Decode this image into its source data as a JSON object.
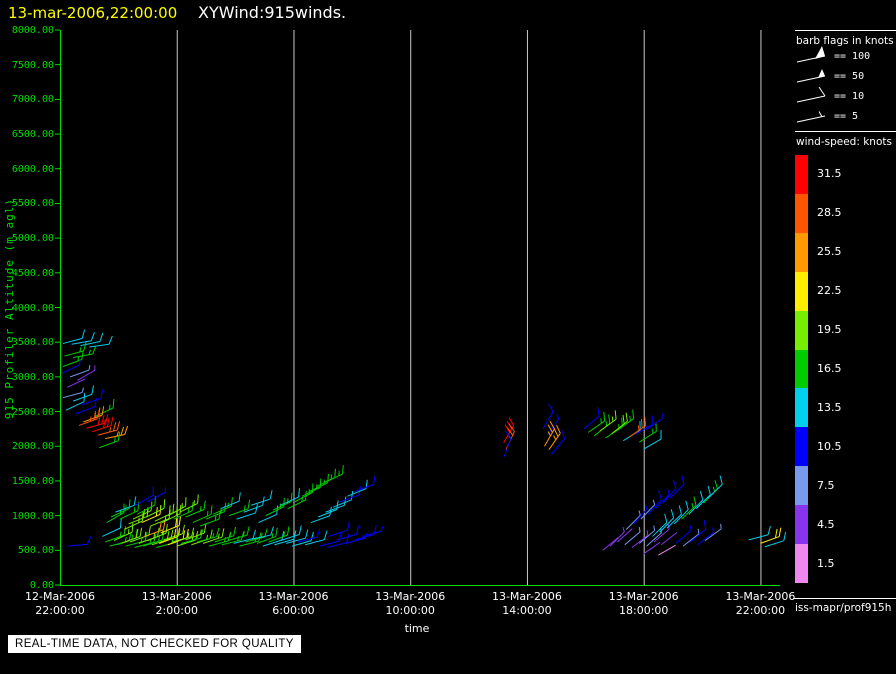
{
  "header": {
    "timestamp": "13-mar-2006,22:00:00",
    "title": "XYWind:915winds."
  },
  "colors": {
    "axis": "#00dd00",
    "timestamp": "#ffff00",
    "grid": "#c8c8c8",
    "background": "#000000"
  },
  "axes": {
    "y_title": "915 Profiler Altitude (m agl)",
    "x_title": "time",
    "y_ticks": [
      "8000.00",
      "7500.00",
      "7000.00",
      "6500.00",
      "6000.00",
      "5500.00",
      "5000.00",
      "4500.00",
      "4000.00",
      "3500.00",
      "3000.00",
      "2500.00",
      "2000.00",
      "1500.00",
      "1000.00",
      "500.00",
      "0.00"
    ],
    "x_ticks": [
      {
        "t": 0,
        "date": "12-Mar-2006",
        "time": "22:00:00"
      },
      {
        "t": 4,
        "date": "13-Mar-2006",
        "time": "2:00:00"
      },
      {
        "t": 8,
        "date": "13-Mar-2006",
        "time": "6:00:00"
      },
      {
        "t": 12,
        "date": "13-Mar-2006",
        "time": "10:00:00"
      },
      {
        "t": 16,
        "date": "13-Mar-2006",
        "time": "14:00:00"
      },
      {
        "t": 20,
        "date": "13-Mar-2006",
        "time": "18:00:00"
      },
      {
        "t": 24,
        "date": "13-Mar-2006",
        "time": "22:00:00"
      }
    ]
  },
  "legend": {
    "barb_title": "barb flags in knots",
    "items": [
      {
        "label": "== 100",
        "flag": "pennant-100"
      },
      {
        "label": "== 50",
        "flag": "pennant-50"
      },
      {
        "label": "== 10",
        "flag": "barb-10"
      },
      {
        "label": "== 5",
        "flag": "barb-5"
      }
    ],
    "speed_title": "wind-speed: knots"
  },
  "colorbar": {
    "labels": [
      "31.5",
      "28.5",
      "25.5",
      "22.5",
      "19.5",
      "16.5",
      "13.5",
      "10.5",
      "7.5",
      "4.5",
      "1.5"
    ],
    "colors": [
      "#ff0000",
      "#ff5500",
      "#ff9900",
      "#ffee00",
      "#77ee00",
      "#00cc00",
      "#00cfee",
      "#0000ff",
      "#7799ee",
      "#8833ee",
      "#ee88ee"
    ]
  },
  "footer": {
    "source": "iss-mapr/prof915h",
    "status": "REAL-TIME DATA, NOT CHECKED FOR QUALITY"
  },
  "chart_data": {
    "type": "scatter",
    "subtype": "wind-barb-time-height",
    "title": "XYWind:915winds.",
    "xlabel": "time",
    "ylabel": "915 Profiler Altitude (m agl)",
    "x_axis": {
      "start": "12-Mar-2006 22:00:00",
      "end": "13-Mar-2006 22:40:00",
      "tick_interval_hours": 4,
      "range_hours": [
        0,
        24.67
      ]
    },
    "y_axis": {
      "min": 0,
      "max": 8000,
      "tick_step": 500,
      "units": "m agl"
    },
    "grid": "vertical-only",
    "legend_position": "right",
    "barb_fields": [
      "t_hours_since_start",
      "altitude_m",
      "speed_knots",
      "screen_angle_deg"
    ],
    "barbs": [
      [
        0.1,
        3480,
        13,
        15
      ],
      [
        0.4,
        3470,
        13,
        10
      ],
      [
        0.7,
        3450,
        14,
        12
      ],
      [
        1.0,
        3430,
        13,
        8
      ],
      [
        0.15,
        3300,
        17,
        15
      ],
      [
        0.45,
        3280,
        16,
        10
      ],
      [
        0.1,
        3150,
        16,
        20
      ],
      [
        0.05,
        3050,
        9,
        25
      ],
      [
        0.35,
        3000,
        8,
        20
      ],
      [
        0.6,
        2950,
        5,
        30
      ],
      [
        0.25,
        2850,
        4,
        25
      ],
      [
        0.1,
        2700,
        8,
        15
      ],
      [
        0.45,
        2650,
        14,
        20
      ],
      [
        0.75,
        2600,
        10,
        18
      ],
      [
        0.2,
        2520,
        13,
        25
      ],
      [
        0.55,
        2470,
        11,
        20
      ],
      [
        1.2,
        2430,
        17,
        25
      ],
      [
        0.8,
        2350,
        25,
        20
      ],
      [
        0.65,
        2300,
        28,
        20
      ],
      [
        0.9,
        2260,
        30,
        15
      ],
      [
        1.1,
        2210,
        31,
        18
      ],
      [
        1.3,
        2160,
        29,
        15
      ],
      [
        1.55,
        2110,
        26,
        12
      ],
      [
        1.35,
        1980,
        17,
        20
      ],
      [
        0.25,
        560,
        10,
        5
      ],
      [
        1.45,
        700,
        14,
        25
      ],
      [
        1.55,
        620,
        16,
        20
      ],
      [
        1.7,
        560,
        17,
        15
      ],
      [
        1.85,
        640,
        19,
        25
      ],
      [
        1.95,
        580,
        16,
        20
      ],
      [
        1.6,
        900,
        17,
        30
      ],
      [
        1.75,
        980,
        16,
        25
      ],
      [
        1.9,
        1050,
        14,
        20
      ],
      [
        2.05,
        950,
        17,
        25
      ],
      [
        2.1,
        600,
        20,
        20
      ],
      [
        2.25,
        560,
        17,
        15
      ],
      [
        2.4,
        620,
        18,
        20
      ],
      [
        2.55,
        540,
        16,
        15
      ],
      [
        2.7,
        600,
        19,
        20
      ],
      [
        2.85,
        560,
        17,
        18
      ],
      [
        3.0,
        640,
        18,
        22
      ],
      [
        3.15,
        580,
        20,
        18
      ],
      [
        3.3,
        540,
        17,
        15
      ],
      [
        2.2,
        800,
        19,
        25
      ],
      [
        2.35,
        880,
        20,
        22
      ],
      [
        2.5,
        950,
        18,
        25
      ],
      [
        2.65,
        1020,
        17,
        28
      ],
      [
        2.8,
        900,
        21,
        24
      ],
      [
        2.9,
        700,
        24,
        20
      ],
      [
        2.95,
        980,
        19,
        26
      ],
      [
        3.1,
        850,
        18,
        22
      ],
      [
        3.25,
        920,
        20,
        25
      ],
      [
        3.45,
        750,
        23,
        22
      ],
      [
        3.4,
        600,
        22,
        20
      ],
      [
        3.55,
        650,
        19,
        18
      ],
      [
        3.7,
        580,
        21,
        20
      ],
      [
        3.85,
        620,
        18,
        16
      ],
      [
        4.0,
        560,
        20,
        18
      ],
      [
        4.15,
        600,
        17,
        15
      ],
      [
        4.3,
        650,
        19,
        20
      ],
      [
        4.5,
        580,
        18,
        18
      ],
      [
        4.7,
        620,
        16,
        15
      ],
      [
        3.5,
        900,
        20,
        26
      ],
      [
        3.7,
        1000,
        19,
        28
      ],
      [
        3.9,
        950,
        17,
        24
      ],
      [
        4.1,
        1050,
        18,
        26
      ],
      [
        4.3,
        980,
        16,
        22
      ],
      [
        4.55,
        900,
        17,
        24
      ],
      [
        4.8,
        850,
        15,
        20
      ],
      [
        4.9,
        600,
        18,
        18
      ],
      [
        5.1,
        560,
        16,
        15
      ],
      [
        5.3,
        620,
        17,
        18
      ],
      [
        5.55,
        580,
        15,
        14
      ],
      [
        5.75,
        640,
        16,
        16
      ],
      [
        5.95,
        600,
        14,
        14
      ],
      [
        6.15,
        560,
        16,
        15
      ],
      [
        6.35,
        620,
        15,
        14
      ],
      [
        6.55,
        660,
        13,
        12
      ],
      [
        5.0,
        950,
        16,
        22
      ],
      [
        5.25,
        1020,
        15,
        24
      ],
      [
        5.5,
        1100,
        14,
        22
      ],
      [
        5.8,
        1000,
        15,
        20
      ],
      [
        6.05,
        950,
        13,
        18
      ],
      [
        6.3,
        1050,
        14,
        20
      ],
      [
        6.55,
        1150,
        13,
        18
      ],
      [
        2.6,
        1150,
        10,
        30
      ],
      [
        3.0,
        1200,
        9,
        28
      ],
      [
        6.75,
        600,
        16,
        20
      ],
      [
        6.95,
        560,
        14,
        18
      ],
      [
        7.15,
        620,
        15,
        20
      ],
      [
        7.35,
        580,
        13,
        16
      ],
      [
        7.55,
        640,
        14,
        18
      ],
      [
        7.75,
        600,
        12,
        15
      ],
      [
        7.95,
        560,
        13,
        16
      ],
      [
        8.15,
        620,
        11,
        14
      ],
      [
        8.4,
        580,
        13,
        15
      ],
      [
        6.8,
        900,
        14,
        24
      ],
      [
        7.05,
        1000,
        15,
        26
      ],
      [
        7.3,
        1080,
        16,
        25
      ],
      [
        7.55,
        1150,
        14,
        24
      ],
      [
        7.8,
        1100,
        15,
        26
      ],
      [
        8.05,
        1200,
        16,
        28
      ],
      [
        8.3,
        1280,
        17,
        26
      ],
      [
        8.55,
        1350,
        16,
        25
      ],
      [
        8.8,
        1420,
        17,
        26
      ],
      [
        9.05,
        1480,
        16,
        24
      ],
      [
        8.6,
        900,
        13,
        20
      ],
      [
        8.85,
        980,
        14,
        22
      ],
      [
        9.1,
        1050,
        12,
        20
      ],
      [
        9.35,
        1120,
        13,
        22
      ],
      [
        9.6,
        1200,
        11,
        20
      ],
      [
        9.85,
        1280,
        12,
        22
      ],
      [
        10.1,
        1350,
        10,
        20
      ],
      [
        9.2,
        700,
        10,
        18
      ],
      [
        9.5,
        650,
        11,
        16
      ],
      [
        9.8,
        600,
        9,
        15
      ],
      [
        10.1,
        650,
        10,
        16
      ],
      [
        10.35,
        700,
        9,
        15
      ],
      [
        8.9,
        560,
        11,
        15
      ],
      [
        9.15,
        540,
        10,
        14
      ],
      [
        15.2,
        2050,
        30,
        60
      ],
      [
        15.28,
        1950,
        29,
        65
      ],
      [
        15.22,
        1850,
        10,
        70
      ],
      [
        16.55,
        2250,
        10,
        60
      ],
      [
        16.7,
        2160,
        9,
        55
      ],
      [
        16.6,
        2000,
        26,
        60
      ],
      [
        16.75,
        1950,
        25,
        55
      ],
      [
        16.85,
        1890,
        10,
        50
      ],
      [
        17.95,
        2250,
        10,
        40
      ],
      [
        18.1,
        2200,
        17,
        35
      ],
      [
        18.3,
        2150,
        16,
        38
      ],
      [
        18.5,
        2220,
        18,
        36
      ],
      [
        18.7,
        2120,
        16,
        34
      ],
      [
        18.9,
        2180,
        20,
        38
      ],
      [
        19.1,
        2230,
        17,
        36
      ],
      [
        19.3,
        2080,
        13,
        32
      ],
      [
        19.5,
        2130,
        28,
        35
      ],
      [
        19.7,
        2170,
        10,
        30
      ],
      [
        19.85,
        2060,
        16,
        32
      ],
      [
        20.0,
        1960,
        14,
        30
      ],
      [
        20.1,
        2240,
        9,
        35
      ],
      [
        18.6,
        500,
        4,
        40
      ],
      [
        18.85,
        560,
        5,
        45
      ],
      [
        19.1,
        620,
        4,
        42
      ],
      [
        19.35,
        580,
        6,
        40
      ],
      [
        19.6,
        540,
        5,
        38
      ],
      [
        19.85,
        600,
        7,
        40
      ],
      [
        20.1,
        560,
        6,
        42
      ],
      [
        20.35,
        620,
        5,
        40
      ],
      [
        20.6,
        580,
        4,
        38
      ],
      [
        19.4,
        800,
        8,
        45
      ],
      [
        19.65,
        880,
        9,
        48
      ],
      [
        19.9,
        950,
        8,
        46
      ],
      [
        20.15,
        1020,
        10,
        48
      ],
      [
        20.4,
        1100,
        9,
        46
      ],
      [
        20.65,
        1180,
        11,
        48
      ],
      [
        20.9,
        1250,
        10,
        45
      ],
      [
        20.3,
        700,
        12,
        44
      ],
      [
        20.55,
        760,
        13,
        46
      ],
      [
        20.8,
        820,
        12,
        44
      ],
      [
        21.05,
        880,
        14,
        46
      ],
      [
        21.3,
        950,
        16,
        44
      ],
      [
        21.55,
        1020,
        14,
        46
      ],
      [
        21.1,
        600,
        9,
        40
      ],
      [
        21.35,
        560,
        8,
        38
      ],
      [
        21.6,
        620,
        10,
        40
      ],
      [
        21.85,
        580,
        9,
        38
      ],
      [
        22.1,
        640,
        8,
        36
      ],
      [
        21.8,
        1100,
        13,
        45
      ],
      [
        22.05,
        1180,
        16,
        46
      ],
      [
        22.2,
        1250,
        13,
        44
      ],
      [
        20.0,
        450,
        3,
        35
      ],
      [
        20.5,
        430,
        2,
        30
      ],
      [
        23.6,
        650,
        13,
        15
      ],
      [
        24.0,
        600,
        22,
        20
      ],
      [
        24.15,
        550,
        13,
        18
      ]
    ]
  }
}
